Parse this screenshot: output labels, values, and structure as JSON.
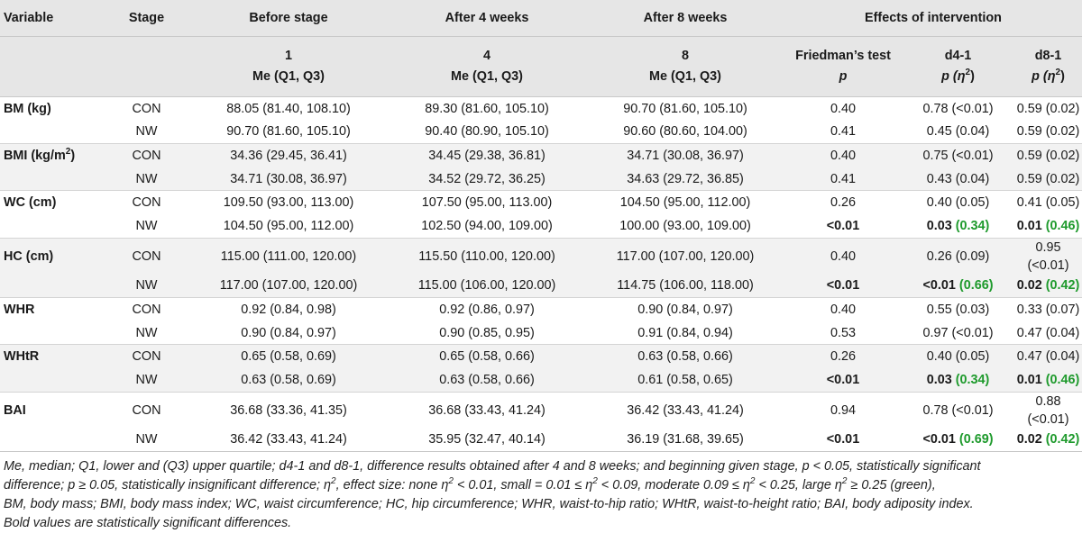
{
  "header": {
    "variable": "Variable",
    "stage": "Stage",
    "before": "Before stage",
    "after4": "After 4 weeks",
    "after8": "After 8 weeks",
    "effects": "Effects of intervention",
    "before_num": "1",
    "after4_num": "4",
    "after8_num": "8",
    "me_label": "Me (Q1, Q3)",
    "friedman": "Friedman’s test",
    "p": "p",
    "d41": "d4-1",
    "d81": "d8-1",
    "p_eta": "p (η",
    "eta_sup": "2",
    "close": ")"
  },
  "rows": [
    {
      "variable": "BM (kg)",
      "stage": "CON",
      "before": "88.05 (81.40, 108.10)",
      "after4": "89.30 (81.60, 105.10)",
      "after8": "90.70 (81.60, 105.10)",
      "friedman": "0.40",
      "d41_p": "0.78",
      "d41_eta": "(<0.01)",
      "d81_p": "0.59",
      "d81_eta": "(0.02)"
    },
    {
      "variable": "",
      "stage": "NW",
      "before": "90.70 (81.60, 105.10)",
      "after4": "90.40 (80.90, 105.10)",
      "after8": "90.60 (80.60, 104.00)",
      "friedman": "0.41",
      "d41_p": "0.45",
      "d41_eta": "(0.04)",
      "d81_p": "0.59",
      "d81_eta": "(0.02)"
    },
    {
      "variable": "BMI (kg/m",
      "variable_sup": "2",
      "variable_end": ")",
      "stage": "CON",
      "before": "34.36 (29.45, 36.41)",
      "after4": "34.45 (29.38, 36.81)",
      "after8": "34.71 (30.08, 36.97)",
      "friedman": "0.40",
      "d41_p": "0.75",
      "d41_eta": "(<0.01)",
      "d81_p": "0.59",
      "d81_eta": "(0.02)"
    },
    {
      "variable": "",
      "stage": "NW",
      "before": "34.71 (30.08, 36.97)",
      "after4": "34.52 (29.72, 36.25)",
      "after8": "34.63 (29.72, 36.85)",
      "friedman": "0.41",
      "d41_p": "0.43",
      "d41_eta": "(0.04)",
      "d81_p": "0.59",
      "d81_eta": "(0.02)"
    },
    {
      "variable": "WC (cm)",
      "stage": "CON",
      "before": "109.50 (93.00, 113.00)",
      "after4": "107.50 (95.00, 113.00)",
      "after8": "104.50 (95.00, 112.00)",
      "friedman": "0.26",
      "d41_p": "0.40",
      "d41_eta": "(0.05)",
      "d81_p": "0.41",
      "d81_eta": "(0.05)"
    },
    {
      "variable": "",
      "stage": "NW",
      "before": "104.50 (95.00, 112.00)",
      "after4": "102.50 (94.00, 109.00)",
      "after8": "100.00 (93.00, 109.00)",
      "friedman": "<0.01",
      "friedman_bold": true,
      "d41_p": "0.03",
      "d41_eta": "(0.34)",
      "d41_sig": true,
      "d81_p": "0.01",
      "d81_eta": "(0.46)",
      "d81_sig": true
    },
    {
      "variable": "HC (cm)",
      "stage": "CON",
      "before": "115.00 (111.00, 120.00)",
      "after4": "115.50 (110.00, 120.00)",
      "after8": "117.00 (107.00, 120.00)",
      "friedman": "0.40",
      "d41_p": "0.26",
      "d41_eta": "(0.09)",
      "d81_p": "0.95",
      "d81_eta": "(<0.01)"
    },
    {
      "variable": "",
      "stage": "NW",
      "before": "117.00 (107.00, 120.00)",
      "after4": "115.00 (106.00, 120.00)",
      "after8": "114.75 (106.00, 118.00)",
      "friedman": "<0.01",
      "friedman_bold": true,
      "d41_p": "<0.01",
      "d41_eta": "(0.66)",
      "d41_sig": true,
      "d81_p": "0.02",
      "d81_eta": "(0.42)",
      "d81_sig": true
    },
    {
      "variable": "WHR",
      "stage": "CON",
      "before": "0.92 (0.84, 0.98)",
      "after4": "0.92 (0.86, 0.97)",
      "after8": "0.90 (0.84, 0.97)",
      "friedman": "0.40",
      "d41_p": "0.55",
      "d41_eta": "(0.03)",
      "d81_p": "0.33",
      "d81_eta": "(0.07)"
    },
    {
      "variable": "",
      "stage": "NW",
      "before": "0.90 (0.84, 0.97)",
      "after4": "0.90 (0.85, 0.95)",
      "after8": "0.91 (0.84, 0.94)",
      "friedman": "0.53",
      "d41_p": "0.97",
      "d41_eta": "(<0.01)",
      "d81_p": "0.47",
      "d81_eta": "(0.04)"
    },
    {
      "variable": "WHtR",
      "stage": "CON",
      "before": "0.65 (0.58, 0.69)",
      "after4": "0.65 (0.58, 0.66)",
      "after8": "0.63 (0.58, 0.66)",
      "friedman": "0.26",
      "d41_p": "0.40",
      "d41_eta": "(0.05)",
      "d81_p": "0.47",
      "d81_eta": "(0.04)"
    },
    {
      "variable": "",
      "stage": "NW",
      "before": "0.63 (0.58, 0.69)",
      "after4": "0.63 (0.58, 0.66)",
      "after8": "0.61 (0.58, 0.65)",
      "friedman": "<0.01",
      "friedman_bold": true,
      "d41_p": "0.03",
      "d41_eta": "(0.34)",
      "d41_sig": true,
      "d81_p": "0.01",
      "d81_eta": "(0.46)",
      "d81_sig": true
    },
    {
      "variable": "BAI",
      "stage": "CON",
      "before": "36.68 (33.36, 41.35)",
      "after4": "36.68 (33.43, 41.24)",
      "after8": "36.42 (33.43, 41.24)",
      "friedman": "0.94",
      "d41_p": "0.78",
      "d41_eta": "(<0.01)",
      "d81_p": "0.88",
      "d81_eta": "(<0.01)"
    },
    {
      "variable": "",
      "stage": "NW",
      "before": "36.42 (33.43, 41.24)",
      "after4": "35.95 (32.47, 40.14)",
      "after8": "36.19 (31.68, 39.65)",
      "friedman": "<0.01",
      "friedman_bold": true,
      "d41_p": "<0.01",
      "d41_eta": "(0.69)",
      "d41_sig": true,
      "d81_p": "0.02",
      "d81_eta": "(0.42)",
      "d81_sig": true
    }
  ],
  "footnote": {
    "line1": "Me, median; Q1, lower and (Q3) upper quartile; d4-1 and d8-1, difference results obtained after 4 and 8 weeks; and beginning given stage, p < 0.05, statistically significant",
    "l2a": "difference; p ≥ 0.05, statistically insignificant difference; η",
    "l2b": ", effect size: none η",
    "l2c": " < 0.01, small = 0.01 ≤ η",
    "l2d": " < 0.09, moderate 0.09 ≤ η",
    "l2e": " < 0.25, large η",
    "l2f": " ≥ 0.25 (green),",
    "sup": "2",
    "line3": "BM, body mass; BMI, body mass index; WC, waist circumference; HC, hip circumference; WHR, waist-to-hip ratio; WHtR, waist-to-height ratio; BAI, body adiposity index.",
    "line4": "Bold values are statistically significant differences."
  },
  "colors": {
    "significant_effect": "#1e9a2c",
    "header_bg": "#e6e6e6",
    "stripe_bg": "#f2f2f2"
  }
}
